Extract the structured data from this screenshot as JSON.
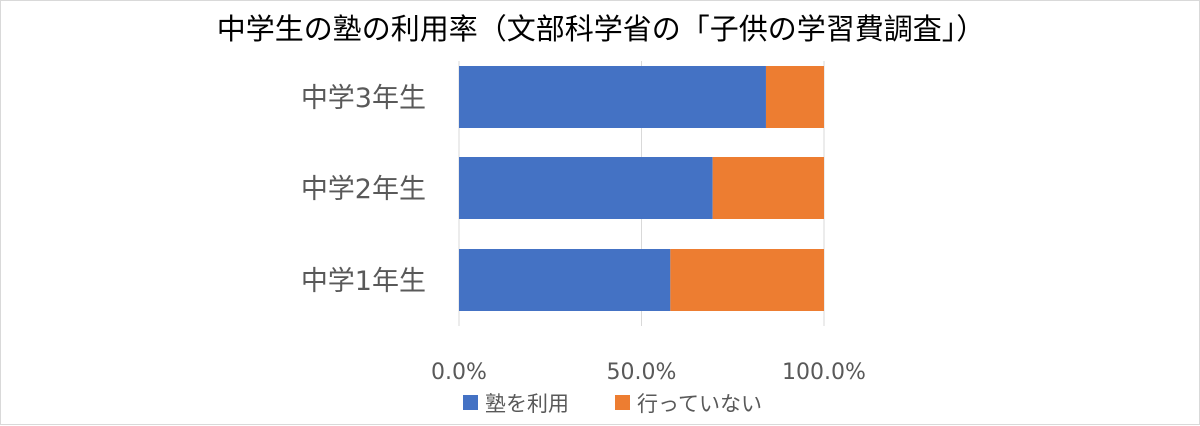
{
  "chart_data": {
    "type": "bar",
    "orientation": "horizontal",
    "stacked": true,
    "title": "中学生の塾の利用率（文部科学省の「子供の学習費調査」）",
    "categories": [
      "中学3年生",
      "中学2年生",
      "中学1年生"
    ],
    "series": [
      {
        "name": "塾を利用",
        "values": [
          84.1,
          69.5,
          57.9
        ],
        "color": "#4472c4"
      },
      {
        "name": "行っていない",
        "values": [
          15.9,
          30.5,
          42.1
        ],
        "color": "#ed7d31"
      }
    ],
    "xlim": [
      0,
      100
    ],
    "x_ticks": [
      0,
      50,
      100
    ],
    "x_tick_labels": [
      "0.0%",
      "50.0%",
      "100.0%"
    ],
    "grid": true,
    "legend_position": "bottom"
  }
}
